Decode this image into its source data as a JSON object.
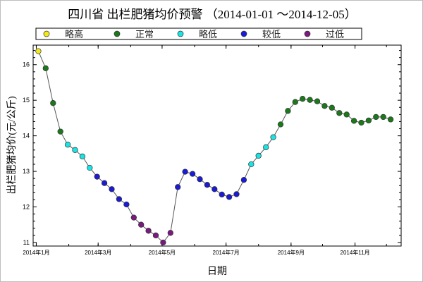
{
  "colors": {
    "略高": "#f2ea16",
    "正常": "#1a7a1a",
    "略低": "#19e3e3",
    "较低": "#1a1ad8",
    "过低": "#7a1a80"
  },
  "chart_data": {
    "type": "line",
    "title": "四川省 出栏肥猪均价预警 （2014-01-01 ～2014-12-05）",
    "xlabel": "日期",
    "ylabel": "出栏肥猪均价(元/公斤)",
    "ylim": [
      10.9,
      16.55
    ],
    "xlim": [
      "2013-12-29",
      "2014-12-15"
    ],
    "yticks": [
      11,
      12,
      13,
      14,
      15,
      16
    ],
    "xticks": [
      {
        "date": "2014-01-01",
        "label": "2014年1月"
      },
      {
        "date": "2014-03-01",
        "label": "2014年3月"
      },
      {
        "date": "2014-05-01",
        "label": "2014年5月"
      },
      {
        "date": "2014-07-01",
        "label": "2014年7月"
      },
      {
        "date": "2014-09-01",
        "label": "2014年9月"
      },
      {
        "date": "2014-11-01",
        "label": "2014年11月"
      }
    ],
    "grid": false,
    "legend": {
      "position": "top",
      "entries": [
        {
          "label": "略高",
          "level": "略高"
        },
        {
          "label": "正常",
          "level": "正常"
        },
        {
          "label": "略低",
          "level": "略低"
        },
        {
          "label": "较低",
          "level": "较低"
        },
        {
          "label": "过低",
          "level": "过低"
        }
      ]
    },
    "points": [
      {
        "date": "2014-01-03",
        "value": 16.38,
        "level": "略高"
      },
      {
        "date": "2014-01-10",
        "value": 15.9,
        "level": "正常"
      },
      {
        "date": "2014-01-17",
        "value": 14.92,
        "level": "正常"
      },
      {
        "date": "2014-01-24",
        "value": 14.12,
        "level": "正常"
      },
      {
        "date": "2014-01-31",
        "value": 13.75,
        "level": "略低"
      },
      {
        "date": "2014-02-07",
        "value": 13.6,
        "level": "略低"
      },
      {
        "date": "2014-02-14",
        "value": 13.42,
        "level": "略低"
      },
      {
        "date": "2014-02-21",
        "value": 13.1,
        "level": "略低"
      },
      {
        "date": "2014-02-28",
        "value": 12.85,
        "level": "较低"
      },
      {
        "date": "2014-03-07",
        "value": 12.67,
        "level": "较低"
      },
      {
        "date": "2014-03-14",
        "value": 12.5,
        "level": "较低"
      },
      {
        "date": "2014-03-21",
        "value": 12.22,
        "level": "较低"
      },
      {
        "date": "2014-03-28",
        "value": 12.07,
        "level": "较低"
      },
      {
        "date": "2014-04-04",
        "value": 11.7,
        "level": "过低"
      },
      {
        "date": "2014-04-11",
        "value": 11.5,
        "level": "过低"
      },
      {
        "date": "2014-04-18",
        "value": 11.33,
        "level": "过低"
      },
      {
        "date": "2014-04-25",
        "value": 11.2,
        "level": "过低"
      },
      {
        "date": "2014-05-02",
        "value": 11.0,
        "level": "过低"
      },
      {
        "date": "2014-05-09",
        "value": 11.27,
        "level": "过低"
      },
      {
        "date": "2014-05-16",
        "value": 12.56,
        "level": "较低"
      },
      {
        "date": "2014-05-23",
        "value": 12.99,
        "level": "较低"
      },
      {
        "date": "2014-05-30",
        "value": 12.93,
        "level": "较低"
      },
      {
        "date": "2014-06-06",
        "value": 12.78,
        "level": "较低"
      },
      {
        "date": "2014-06-13",
        "value": 12.62,
        "level": "较低"
      },
      {
        "date": "2014-06-20",
        "value": 12.5,
        "level": "较低"
      },
      {
        "date": "2014-06-27",
        "value": 12.35,
        "level": "较低"
      },
      {
        "date": "2014-07-04",
        "value": 12.28,
        "level": "较低"
      },
      {
        "date": "2014-07-11",
        "value": 12.36,
        "level": "较低"
      },
      {
        "date": "2014-07-18",
        "value": 12.76,
        "level": "较低"
      },
      {
        "date": "2014-07-25",
        "value": 13.2,
        "level": "略低"
      },
      {
        "date": "2014-08-01",
        "value": 13.44,
        "level": "略低"
      },
      {
        "date": "2014-08-08",
        "value": 13.68,
        "level": "略低"
      },
      {
        "date": "2014-08-15",
        "value": 13.96,
        "level": "略低"
      },
      {
        "date": "2014-08-22",
        "value": 14.32,
        "level": "正常"
      },
      {
        "date": "2014-08-29",
        "value": 14.7,
        "level": "正常"
      },
      {
        "date": "2014-09-05",
        "value": 14.95,
        "level": "正常"
      },
      {
        "date": "2014-09-12",
        "value": 15.04,
        "level": "正常"
      },
      {
        "date": "2014-09-19",
        "value": 15.01,
        "level": "正常"
      },
      {
        "date": "2014-09-26",
        "value": 14.97,
        "level": "正常"
      },
      {
        "date": "2014-10-03",
        "value": 14.84,
        "level": "正常"
      },
      {
        "date": "2014-10-10",
        "value": 14.79,
        "level": "正常"
      },
      {
        "date": "2014-10-17",
        "value": 14.64,
        "level": "正常"
      },
      {
        "date": "2014-10-24",
        "value": 14.6,
        "level": "正常"
      },
      {
        "date": "2014-10-31",
        "value": 14.42,
        "level": "正常"
      },
      {
        "date": "2014-11-07",
        "value": 14.37,
        "level": "正常"
      },
      {
        "date": "2014-11-14",
        "value": 14.43,
        "level": "正常"
      },
      {
        "date": "2014-11-21",
        "value": 14.53,
        "level": "正常"
      },
      {
        "date": "2014-11-28",
        "value": 14.53,
        "level": "正常"
      },
      {
        "date": "2014-12-05",
        "value": 14.46,
        "level": "正常"
      }
    ]
  }
}
